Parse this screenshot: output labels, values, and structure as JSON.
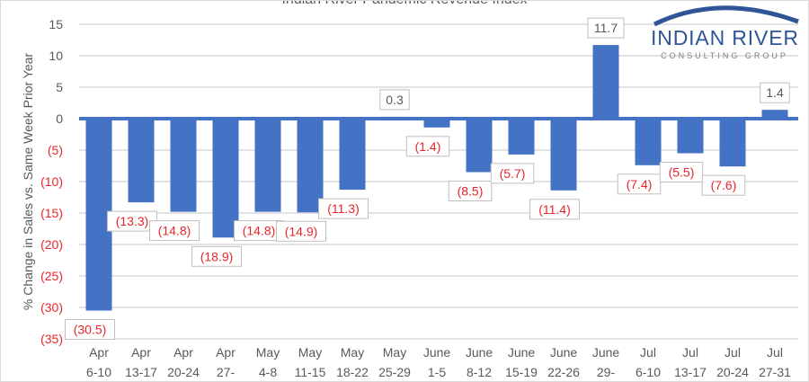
{
  "chart_data": {
    "type": "bar",
    "title": "Indian River Pandemic Revenue Index",
    "ylabel": "% Change in Sales vs. Same Week Prior Year",
    "xlabel": "",
    "ylim": [
      -35,
      15
    ],
    "yticks": [
      15,
      10,
      5,
      0,
      -5,
      -10,
      -15,
      -20,
      -25,
      -30,
      -35
    ],
    "ytick_labels": [
      "15",
      "10",
      "5",
      "0",
      "(5)",
      "(10)",
      "(15)",
      "(20)",
      "(25)",
      "(30)",
      "(35)"
    ],
    "grid": true,
    "categories": [
      [
        "Apr",
        "6-10"
      ],
      [
        "Apr",
        "13-17"
      ],
      [
        "Apr",
        "20-24"
      ],
      [
        "Apr",
        "27-"
      ],
      [
        "May",
        "4-8"
      ],
      [
        "May",
        "11-15"
      ],
      [
        "May",
        "18-22"
      ],
      [
        "May",
        "25-29"
      ],
      [
        "June",
        "1-5"
      ],
      [
        "June",
        "8-12"
      ],
      [
        "June",
        "15-19"
      ],
      [
        "June",
        "22-26"
      ],
      [
        "June",
        "29-"
      ],
      [
        "Jul",
        "6-10"
      ],
      [
        "Jul",
        "13-17"
      ],
      [
        "Jul",
        "20-24"
      ],
      [
        "Jul",
        "27-31"
      ]
    ],
    "values": [
      -30.5,
      -13.3,
      -14.8,
      -18.9,
      -14.8,
      -14.9,
      -11.3,
      0.3,
      -1.4,
      -8.5,
      -5.7,
      -11.4,
      11.7,
      -7.4,
      -5.5,
      -7.6,
      1.4
    ],
    "data_labels": [
      "(30.5)",
      "(13.3)",
      "(14.8)",
      "(18.9)",
      "(14.8)",
      "(14.9)",
      "(11.3)",
      "0.3",
      "(1.4)",
      "(8.5)",
      "(5.7)",
      "(11.4)",
      "11.7",
      "(7.4)",
      "(5.5)",
      "(7.6)",
      "1.4"
    ],
    "colors": {
      "bar": "#4472c4",
      "negative_text": "#e8262b",
      "positive_text": "#595959",
      "grid": "#d9d9d9"
    }
  },
  "logo": {
    "name": "INDIAN RIVER",
    "tagline": "CONSULTING GROUP",
    "color": "#2f5597"
  }
}
